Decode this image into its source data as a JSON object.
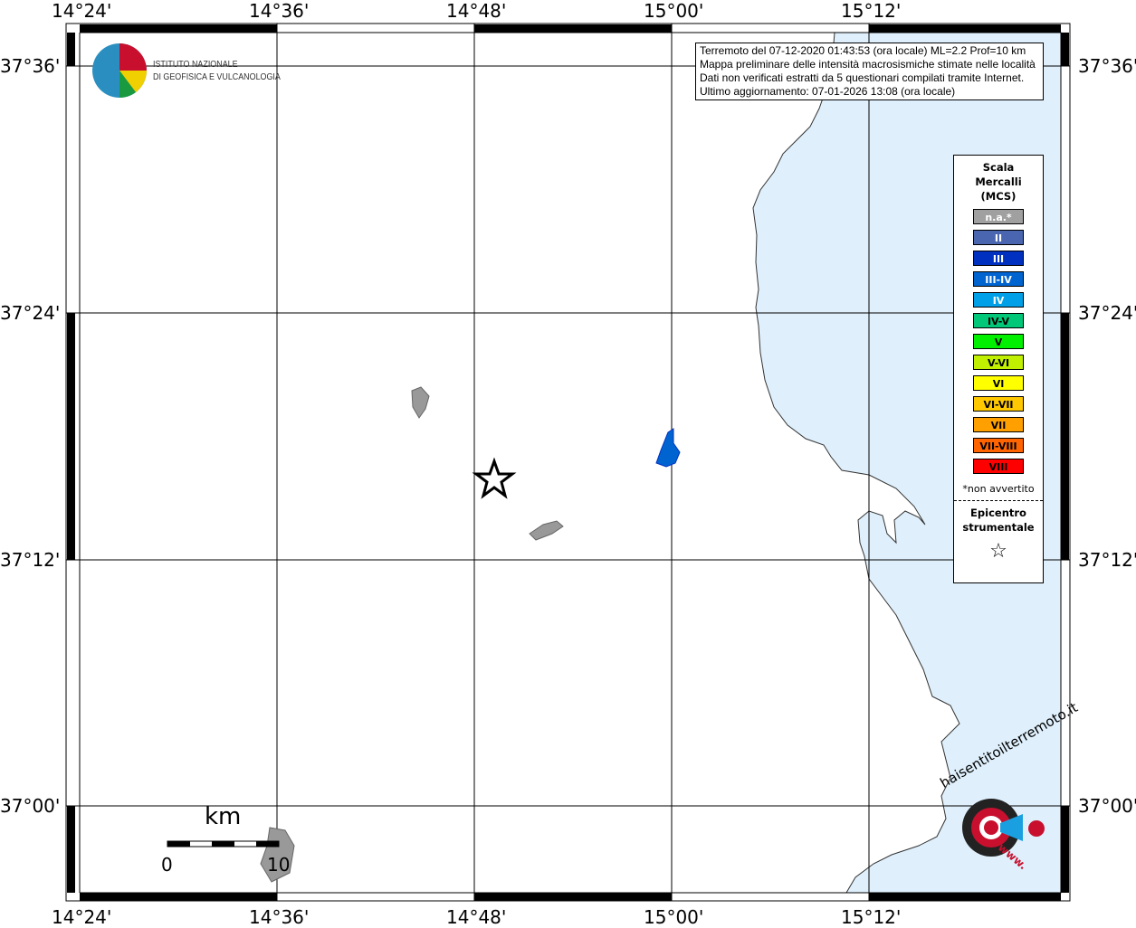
{
  "map": {
    "lon_labels": [
      "14°24'",
      "14°36'",
      "14°48'",
      "15°00'",
      "15°12'"
    ],
    "lat_labels": [
      "37°36'",
      "37°24'",
      "37°12'",
      "37°00'"
    ],
    "sea_color": "#dff0fc",
    "land_color": "#ffffff"
  },
  "info": {
    "lines": [
      "Terremoto del 07-12-2020 01:43:53 (ora locale) ML=2.2 Prof=10 km",
      "Mappa preliminare delle intensità macrosismiche stimate nelle località",
      "Dati non verificati estratti da 5 questionari compilati tramite Internet.",
      "Ultimo aggiornamento: 07-01-2026 13:08 (ora locale)"
    ]
  },
  "logo_ingv": {
    "line1": "ISTITUTO NAZIONALE",
    "line2": "DI GEOFISICA E VULCANOLOGIA"
  },
  "logo_hst": {
    "text": "haisentitoilterremoto.it",
    "www": "www."
  },
  "legend": {
    "title": [
      "Scala",
      "Mercalli",
      "(MCS)"
    ],
    "items": [
      {
        "label": "n.a.*",
        "color": "#a0a0a0",
        "text": "#ffffff"
      },
      {
        "label": "II",
        "color": "#4a66b0",
        "text": "#ffffff"
      },
      {
        "label": "III",
        "color": "#0030c0",
        "text": "#ffffff"
      },
      {
        "label": "III-IV",
        "color": "#0064d0",
        "text": "#ffffff"
      },
      {
        "label": "IV",
        "color": "#00a0e8",
        "text": "#ffffff"
      },
      {
        "label": "IV-V",
        "color": "#00c878",
        "text": "#000000"
      },
      {
        "label": "V",
        "color": "#00f000",
        "text": "#000000"
      },
      {
        "label": "V-VI",
        "color": "#c0f000",
        "text": "#000000"
      },
      {
        "label": "VI",
        "color": "#ffff00",
        "text": "#000000"
      },
      {
        "label": "VI-VII",
        "color": "#ffc800",
        "text": "#000000"
      },
      {
        "label": "VII",
        "color": "#ffa000",
        "text": "#000000"
      },
      {
        "label": "VII-VIII",
        "color": "#ff6400",
        "text": "#000000"
      },
      {
        "label": "VIII",
        "color": "#ff0000",
        "text": "#000000"
      }
    ],
    "note": "*non avvertito",
    "epicenter_title": [
      "Epicentro",
      "strumentale"
    ],
    "epicenter_icon": "star-outline-icon"
  },
  "scalebar": {
    "unit": "km",
    "start": "0",
    "end": "10"
  },
  "locality_intensity": "III-IV"
}
